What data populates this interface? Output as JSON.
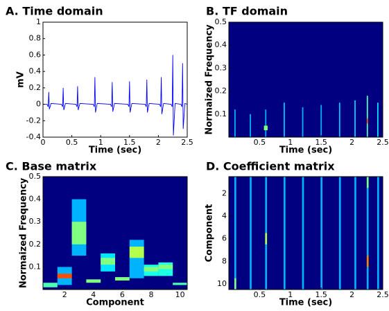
{
  "chart_data": [
    {
      "type": "line",
      "title": "A. Time domain",
      "xlabel": "Time (sec)",
      "ylabel": "mV",
      "xlim": [
        0,
        2.5
      ],
      "xticks": [
        0,
        0.5,
        1,
        1.5,
        2,
        2.5
      ],
      "ylim": [
        -0.4,
        1
      ],
      "yticks": [
        -0.4,
        -0.2,
        0,
        0.2,
        0.4,
        0.6,
        0.8,
        1
      ],
      "series": [
        {
          "color": "#0000ff",
          "x": [
            0,
            0.07,
            0.09,
            0.1,
            0.11,
            0.14,
            0.32,
            0.34,
            0.35,
            0.36,
            0.39,
            0.57,
            0.59,
            0.6,
            0.61,
            0.64,
            0.87,
            0.89,
            0.9,
            0.91,
            0.94,
            1.17,
            1.19,
            1.2,
            1.21,
            1.24,
            1.47,
            1.49,
            1.5,
            1.51,
            1.54,
            1.77,
            1.79,
            1.8,
            1.81,
            1.84,
            2.02,
            2.04,
            2.05,
            2.06,
            2.09,
            2.22,
            2.24,
            2.25,
            2.26,
            2.29,
            2.39,
            2.41,
            2.42,
            2.43,
            2.46,
            2.5
          ],
          "values": [
            0,
            0,
            -0.03,
            0.15,
            -0.06,
            0.01,
            0,
            -0.03,
            0.2,
            -0.07,
            0.01,
            0,
            -0.03,
            0.22,
            -0.07,
            0.01,
            0,
            -0.03,
            0.33,
            -0.1,
            0.01,
            0,
            -0.03,
            0.27,
            -0.09,
            0.01,
            0,
            -0.03,
            0.28,
            -0.1,
            0.01,
            0,
            -0.03,
            0.3,
            -0.1,
            0.01,
            0,
            -0.03,
            0.33,
            -0.12,
            0.01,
            0,
            -0.03,
            0.6,
            -0.38,
            0.01,
            0,
            -0.03,
            0.5,
            -0.3,
            0.01,
            0
          ]
        }
      ]
    },
    {
      "type": "heatmap",
      "title": "B. TF domain",
      "xlabel": "Time (sec)",
      "ylabel": "Normaized Frequency",
      "xlim": [
        0,
        2.5
      ],
      "xticks": [
        0.5,
        1,
        1.5,
        2,
        2.5
      ],
      "ylim": [
        0,
        0.5
      ],
      "yticks": [
        0.1,
        0.2,
        0.3,
        0.4,
        0.5
      ],
      "clim": [
        0,
        1
      ],
      "spots": [
        {
          "x": [
            0.09,
            0.11
          ],
          "y": [
            0,
            0.12
          ],
          "value": 0.3
        },
        {
          "x": [
            0.34,
            0.36
          ],
          "y": [
            0,
            0.1
          ],
          "value": 0.3
        },
        {
          "x": [
            0.59,
            0.61
          ],
          "y": [
            0,
            0.12
          ],
          "value": 0.3
        },
        {
          "x": [
            0.57,
            0.63
          ],
          "y": [
            0.03,
            0.05
          ],
          "value": 0.5
        },
        {
          "x": [
            0.89,
            0.91
          ],
          "y": [
            0,
            0.15
          ],
          "value": 0.32
        },
        {
          "x": [
            1.19,
            1.21
          ],
          "y": [
            0,
            0.13
          ],
          "value": 0.3
        },
        {
          "x": [
            1.49,
            1.51
          ],
          "y": [
            0,
            0.14
          ],
          "value": 0.3
        },
        {
          "x": [
            1.79,
            1.81
          ],
          "y": [
            0,
            0.15
          ],
          "value": 0.32
        },
        {
          "x": [
            2.04,
            2.06
          ],
          "y": [
            0,
            0.16
          ],
          "value": 0.33
        },
        {
          "x": [
            2.24,
            2.26
          ],
          "y": [
            0,
            0.18
          ],
          "value": 0.45
        },
        {
          "x": [
            2.24,
            2.26
          ],
          "y": [
            0.06,
            0.08
          ],
          "value": 0.8
        },
        {
          "x": [
            2.41,
            2.43
          ],
          "y": [
            0,
            0.15
          ],
          "value": 0.35
        }
      ]
    },
    {
      "type": "heatmap",
      "title": "C. Base matrix",
      "xlabel": "Component",
      "ylabel": "Normaized Frequency",
      "xlim": [
        0.5,
        10.5
      ],
      "xticks": [
        2,
        4,
        6,
        8,
        10
      ],
      "ylim": [
        0,
        0.5
      ],
      "yticks": [
        0.1,
        0.2,
        0.3,
        0.4,
        0.5
      ],
      "clim": [
        0,
        1
      ],
      "spots": [
        {
          "x": [
            0.5,
            1.5
          ],
          "y": [
            0.01,
            0.03
          ],
          "value": 0.45
        },
        {
          "x": [
            1.5,
            2.5
          ],
          "y": [
            0.02,
            0.1
          ],
          "value": 0.3
        },
        {
          "x": [
            1.5,
            2.5
          ],
          "y": [
            0.05,
            0.07
          ],
          "value": 0.8
        },
        {
          "x": [
            2.5,
            3.5
          ],
          "y": [
            0.15,
            0.4
          ],
          "value": 0.3
        },
        {
          "x": [
            2.5,
            3.5
          ],
          "y": [
            0.2,
            0.3
          ],
          "value": 0.5
        },
        {
          "x": [
            3.5,
            4.5
          ],
          "y": [
            0.03,
            0.045
          ],
          "value": 0.5
        },
        {
          "x": [
            4.5,
            5.5
          ],
          "y": [
            0.08,
            0.16
          ],
          "value": 0.35
        },
        {
          "x": [
            4.5,
            5.5
          ],
          "y": [
            0.11,
            0.14
          ],
          "value": 0.5
        },
        {
          "x": [
            5.5,
            6.5
          ],
          "y": [
            0.04,
            0.055
          ],
          "value": 0.5
        },
        {
          "x": [
            6.5,
            7.5
          ],
          "y": [
            0.05,
            0.22
          ],
          "value": 0.3
        },
        {
          "x": [
            6.5,
            7.5
          ],
          "y": [
            0.14,
            0.19
          ],
          "value": 0.55
        },
        {
          "x": [
            7.5,
            8.5
          ],
          "y": [
            0.06,
            0.11
          ],
          "value": 0.4
        },
        {
          "x": [
            7.5,
            8.5
          ],
          "y": [
            0.08,
            0.1
          ],
          "value": 0.5
        },
        {
          "x": [
            8.5,
            9.5
          ],
          "y": [
            0.06,
            0.12
          ],
          "value": 0.4
        },
        {
          "x": [
            8.5,
            9.5
          ],
          "y": [
            0.09,
            0.11
          ],
          "value": 0.5
        },
        {
          "x": [
            9.5,
            10.5
          ],
          "y": [
            0.02,
            0.03
          ],
          "value": 0.45
        }
      ]
    },
    {
      "type": "heatmap",
      "title": "D. Coefficient matrix",
      "xlabel": "Time (sec)",
      "ylabel": "Component",
      "xlim": [
        0,
        2.5
      ],
      "xticks": [
        0.5,
        1,
        1.5,
        2,
        2.5
      ],
      "ylim": [
        10.5,
        0.5
      ],
      "yticks": [
        2,
        4,
        6,
        8,
        10
      ],
      "clim": [
        0,
        1
      ],
      "spots": [
        {
          "x": [
            0.09,
            0.12
          ],
          "y": [
            0.5,
            10.5
          ],
          "value": 0.3
        },
        {
          "x": [
            0.34,
            0.37
          ],
          "y": [
            0.5,
            10.5
          ],
          "value": 0.3
        },
        {
          "x": [
            0.59,
            0.62
          ],
          "y": [
            0.5,
            10.5
          ],
          "value": 0.3
        },
        {
          "x": [
            0.89,
            0.92
          ],
          "y": [
            0.5,
            10.5
          ],
          "value": 0.3
        },
        {
          "x": [
            1.19,
            1.22
          ],
          "y": [
            0.5,
            10.5
          ],
          "value": 0.3
        },
        {
          "x": [
            1.49,
            1.52
          ],
          "y": [
            0.5,
            10.5
          ],
          "value": 0.3
        },
        {
          "x": [
            1.79,
            1.82
          ],
          "y": [
            0.5,
            10.5
          ],
          "value": 0.3
        },
        {
          "x": [
            2.04,
            2.07
          ],
          "y": [
            0.5,
            10.5
          ],
          "value": 0.3
        },
        {
          "x": [
            2.24,
            2.27
          ],
          "y": [
            0.5,
            10.5
          ],
          "value": 0.3
        },
        {
          "x": [
            2.41,
            2.44
          ],
          "y": [
            0.5,
            10.5
          ],
          "value": 0.3
        },
        {
          "x": [
            0.09,
            0.12
          ],
          "y": [
            9.5,
            10.5
          ],
          "value": 0.5
        },
        {
          "x": [
            0.59,
            0.62
          ],
          "y": [
            5.5,
            6.5
          ],
          "value": 0.55
        },
        {
          "x": [
            2.24,
            2.27
          ],
          "y": [
            7.5,
            8.5
          ],
          "value": 0.75
        },
        {
          "x": [
            2.24,
            2.27
          ],
          "y": [
            0.5,
            1.5
          ],
          "value": 0.5
        }
      ]
    }
  ]
}
